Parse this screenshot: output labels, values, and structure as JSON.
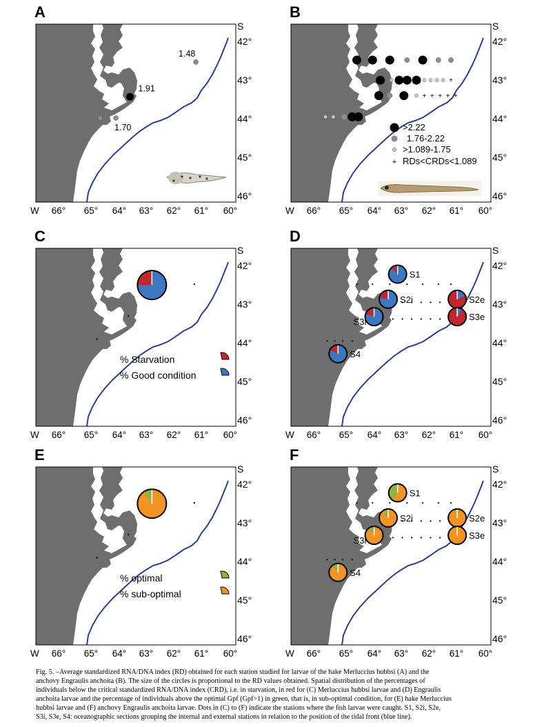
{
  "figure": {
    "x_tick_labels": [
      "W",
      "66°",
      "65°",
      "64°",
      "63°",
      "62°",
      "61°",
      "60°"
    ],
    "y_axis_label": "S",
    "y_tick_labels": [
      "42°",
      "43°",
      "44°",
      "45°",
      "46°"
    ],
    "colors": {
      "land": "#6e6e6e",
      "tidal_front": "#2b3d9a",
      "starvation": "#c1272d",
      "good_condition": "#3a78c2",
      "optimal": "#8db53c",
      "sub_optimal": "#f39322",
      "rd_dot_large": "#000000",
      "rd_dot_medium": "#8c8c8c"
    },
    "panels": [
      {
        "letter": "A",
        "stations": [
          {
            "lon": 63.55,
            "lat": 43.43,
            "type": "big",
            "label": "1.91"
          },
          {
            "lon": 61.45,
            "lat": 42.53,
            "type": "small",
            "label": "1.48"
          },
          {
            "lon": 64.0,
            "lat": 43.98,
            "type": "small",
            "label": "1.70"
          },
          {
            "lon": 64.5,
            "lat": 43.98,
            "type": "small",
            "label": ""
          }
        ],
        "larva_icon": "hake-larva-photo"
      },
      {
        "letter": "B",
        "dots": [
          {
            "lon": 64.45,
            "lat": 42.48,
            "c": "big"
          },
          {
            "lon": 63.95,
            "lat": 42.48,
            "c": "big"
          },
          {
            "lon": 63.4,
            "lat": 42.48,
            "c": "big"
          },
          {
            "lon": 62.85,
            "lat": 42.48,
            "c": "med"
          },
          {
            "lon": 62.35,
            "lat": 42.48,
            "c": "big"
          },
          {
            "lon": 61.85,
            "lat": 42.48,
            "c": "med"
          },
          {
            "lon": 61.45,
            "lat": 42.48,
            "c": "med"
          },
          {
            "lon": 63.7,
            "lat": 43.0,
            "c": "big"
          },
          {
            "lon": 63.35,
            "lat": 43.0,
            "c": "sm"
          },
          {
            "lon": 63.1,
            "lat": 43.0,
            "c": "big"
          },
          {
            "lon": 62.85,
            "lat": 43.0,
            "c": "big"
          },
          {
            "lon": 62.55,
            "lat": 43.0,
            "c": "big"
          },
          {
            "lon": 62.3,
            "lat": 43.0,
            "c": "sm"
          },
          {
            "lon": 62.1,
            "lat": 43.0,
            "c": "sm"
          },
          {
            "lon": 61.9,
            "lat": 43.0,
            "c": "sm"
          },
          {
            "lon": 61.7,
            "lat": 43.0,
            "c": "sm"
          },
          {
            "lon": 61.45,
            "lat": 43.0,
            "c": "plus"
          },
          {
            "lon": 63.75,
            "lat": 43.4,
            "c": "big"
          },
          {
            "lon": 63.4,
            "lat": 43.4,
            "c": "med"
          },
          {
            "lon": 62.95,
            "lat": 43.4,
            "c": "big"
          },
          {
            "lon": 62.55,
            "lat": 43.4,
            "c": "sm"
          },
          {
            "lon": 62.3,
            "lat": 43.4,
            "c": "plus"
          },
          {
            "lon": 62.05,
            "lat": 43.4,
            "c": "plus"
          },
          {
            "lon": 61.8,
            "lat": 43.4,
            "c": "plus"
          },
          {
            "lon": 61.55,
            "lat": 43.4,
            "c": "plus"
          },
          {
            "lon": 61.3,
            "lat": 43.4,
            "c": "plus"
          },
          {
            "lon": 65.45,
            "lat": 43.95,
            "c": "sm"
          },
          {
            "lon": 65.2,
            "lat": 43.95,
            "c": "sm"
          },
          {
            "lon": 64.85,
            "lat": 43.95,
            "c": "med"
          },
          {
            "lon": 64.6,
            "lat": 43.95,
            "c": "big"
          },
          {
            "lon": 64.4,
            "lat": 43.95,
            "c": "big"
          }
        ],
        "legend": [
          {
            "symbol": "big",
            "text": ">2.22"
          },
          {
            "symbol": "med",
            "text": "1.76-2.22"
          },
          {
            "symbol": "sm",
            "text": ">1.089-1.75"
          },
          {
            "symbol": "plus",
            "text": "RDs<CRDs<1.089"
          }
        ],
        "larva_icon": "anchovy-larva-photo"
      },
      {
        "letter": "C",
        "pies": [
          {
            "lon": 62.85,
            "lat": 42.5,
            "r": 21,
            "fraction": 0.25,
            "label": ""
          }
        ],
        "dots": [
          [
            61.5,
            42.48
          ],
          [
            63.6,
            43.3
          ],
          [
            64.6,
            43.9
          ]
        ],
        "legend": [
          {
            "text": "% Starvation",
            "kind": "first"
          },
          {
            "text": "% Good condition",
            "kind": "second"
          }
        ],
        "pie_colors": [
          "starvation",
          "good_condition"
        ]
      },
      {
        "letter": "D",
        "pies": [
          {
            "lon": 63.15,
            "lat": 42.22,
            "r": 13,
            "fraction": 0.12,
            "label": "S1"
          },
          {
            "lon": 63.45,
            "lat": 42.87,
            "r": 13,
            "fraction": 0.22,
            "label": "S2i"
          },
          {
            "lon": 61.25,
            "lat": 42.87,
            "r": 13,
            "fraction": 0.82,
            "label": "S2e"
          },
          {
            "lon": 63.9,
            "lat": 43.32,
            "r": 13,
            "fraction": 0.2,
            "label": "S3i"
          },
          {
            "lon": 61.25,
            "lat": 43.32,
            "r": 13,
            "fraction": 0.9,
            "label": "S3e"
          },
          {
            "lon": 65.05,
            "lat": 44.28,
            "r": 13,
            "fraction": 0.18,
            "label": "S4"
          }
        ],
        "dot_rows": [
          {
            "lat": 42.48,
            "lons": [
              64.45,
              63.95,
              63.4,
              62.85,
              62.35,
              61.85,
              61.45
            ]
          },
          {
            "lat": 42.95,
            "lons": [
              63.0,
              62.7,
              62.4,
              62.1,
              61.8
            ]
          },
          {
            "lat": 43.38,
            "lons": [
              63.3,
              63.0,
              62.7,
              62.4,
              62.1,
              61.8,
              61.5
            ]
          },
          {
            "lat": 43.95,
            "lons": [
              65.4,
              65.15,
              64.9,
              64.6
            ]
          }
        ],
        "pie_colors": [
          "starvation",
          "good_condition"
        ]
      },
      {
        "letter": "E",
        "pies": [
          {
            "lon": 62.85,
            "lat": 42.5,
            "r": 21,
            "fraction": 0.1,
            "label": ""
          }
        ],
        "dots": [
          [
            61.5,
            42.48
          ],
          [
            63.6,
            43.3
          ],
          [
            64.6,
            43.9
          ]
        ],
        "legend": [
          {
            "text": "% optimal",
            "kind": "first"
          },
          {
            "text": "% sub-optimal",
            "kind": "second"
          }
        ],
        "pie_colors": [
          "optimal",
          "sub_optimal"
        ]
      },
      {
        "letter": "F",
        "pies": [
          {
            "lon": 63.15,
            "lat": 42.22,
            "r": 13,
            "fraction": 0.4,
            "label": "S1"
          },
          {
            "lon": 63.45,
            "lat": 42.87,
            "r": 13,
            "fraction": 0.1,
            "label": "S2i"
          },
          {
            "lon": 61.25,
            "lat": 42.87,
            "r": 13,
            "fraction": 0.06,
            "label": "S2e"
          },
          {
            "lon": 63.9,
            "lat": 43.32,
            "r": 13,
            "fraction": 0.12,
            "label": "S3i"
          },
          {
            "lon": 61.25,
            "lat": 43.32,
            "r": 13,
            "fraction": 0.04,
            "label": "S3e"
          },
          {
            "lon": 65.05,
            "lat": 44.28,
            "r": 13,
            "fraction": 0.12,
            "label": "S4"
          }
        ],
        "dot_rows": [
          {
            "lat": 42.48,
            "lons": [
              64.45,
              63.95,
              63.4,
              62.85,
              62.35,
              61.85,
              61.45
            ]
          },
          {
            "lat": 42.95,
            "lons": [
              63.0,
              62.7,
              62.4,
              62.1,
              61.8
            ]
          },
          {
            "lat": 43.38,
            "lons": [
              63.3,
              63.0,
              62.7,
              62.4,
              62.1,
              61.8,
              61.5
            ]
          },
          {
            "lat": 43.95,
            "lons": [
              65.4,
              65.15,
              64.9,
              64.6
            ]
          }
        ],
        "pie_colors": [
          "optimal",
          "sub_optimal"
        ]
      }
    ]
  },
  "caption": {
    "lines": [
      "Fig. 5. –Average standardized RNA/DNA index (RD) obtained for each station studied for larvae of the hake Merluccius hubbsi (A) and the",
      "anchovy Engraulis anchoita (B). The size of the circles is proportional to the RD values obtained. Spatial distribution of the percentages of",
      "individuals below the critical standardized RNA/DNA index (CRD), i.e. in starvation, in red for (C) Merluccius hubbsi larvae and (D) Engraulis",
      "anchoita larvae and the percentage of individuals above the optimal Gpf (Gpf>1) in green, that is, in sub-optimal condition, for (E) hake Merluccius",
      "hubbsi larvae and (F) anchovy Engraulis anchoita larvae. Dots in (C) to (F) indicate the stations where the fish larvae were caught. S1, S2i, S2e,",
      "S3i, S3e, S4: oceanographic sections grouping the internal and external stations in relation to the position of the tidal front (blue line)."
    ]
  }
}
